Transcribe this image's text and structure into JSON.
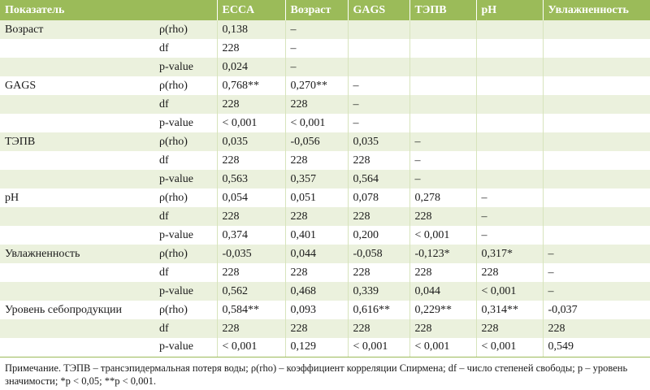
{
  "header": [
    "Показатель",
    "",
    "ECCA",
    "Возраст",
    "GAGS",
    "ТЭПВ",
    "pH",
    "Увлажненность"
  ],
  "rows": [
    [
      "Возраст",
      "ρ(rho)",
      "0,138",
      "–",
      "",
      "",
      "",
      ""
    ],
    [
      "",
      "df",
      "228",
      "–",
      "",
      "",
      "",
      ""
    ],
    [
      "",
      "p-value",
      "0,024",
      "–",
      "",
      "",
      "",
      ""
    ],
    [
      "GAGS",
      "ρ(rho)",
      "0,768**",
      "0,270**",
      "–",
      "",
      "",
      ""
    ],
    [
      "",
      "df",
      "228",
      "228",
      "–",
      "",
      "",
      ""
    ],
    [
      "",
      "p-value",
      "< 0,001",
      "< 0,001",
      "–",
      "",
      "",
      ""
    ],
    [
      " ТЭПВ",
      "ρ(rho)",
      "0,035",
      "-0,056",
      "0,035",
      "–",
      "",
      ""
    ],
    [
      "",
      "df",
      "228",
      "228",
      "228",
      "–",
      "",
      ""
    ],
    [
      "",
      "p-value",
      "0,563",
      "0,357",
      "0,564",
      "–",
      "",
      ""
    ],
    [
      "pH",
      "ρ(rho)",
      "0,054",
      "0,051",
      "0,078",
      "0,278",
      "–",
      ""
    ],
    [
      "",
      "df",
      "228",
      "228",
      "228",
      "228",
      "–",
      ""
    ],
    [
      "",
      "p-value",
      "0,374",
      "0,401",
      "0,200",
      "< 0,001",
      "–",
      ""
    ],
    [
      "Увлажненность",
      "ρ(rho)",
      "-0,035",
      "0,044",
      "-0,058",
      "-0,123*",
      "0,317*",
      "–"
    ],
    [
      "",
      "df",
      "228",
      "228",
      "228",
      "228",
      "228",
      "–"
    ],
    [
      "",
      "p-value",
      "0,562",
      "0,468",
      "0,339",
      "0,044",
      "< 0,001",
      "–"
    ],
    [
      "Уровень себопродукции",
      "ρ(rho)",
      "0,584**",
      "0,093",
      "0,616**",
      "0,229**",
      "0,314**",
      "-0,037"
    ],
    [
      "",
      "df",
      "228",
      "228",
      "228",
      "228",
      "228",
      "228"
    ],
    [
      "",
      "p-value",
      "< 0,001",
      "0,129",
      "< 0,001",
      "< 0,001",
      "< 0,001",
      "0,549"
    ]
  ],
  "note": "Примечание. ТЭПВ – трансэпидермальная потеря воды; ρ(rho) – коэффициент корреляции Спирмена; df – число степеней свободы; p – уровень значимости; *p < 0,05; **p < 0,001.",
  "colors": {
    "header_bg": "#9bbb59",
    "band_bg": "#ebf1dd"
  }
}
